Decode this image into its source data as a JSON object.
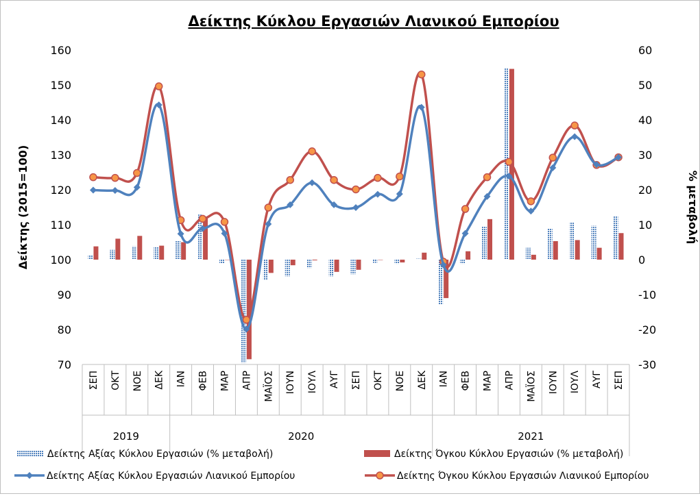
{
  "chart_data": {
    "type": "bar+line",
    "title": "Δείκτης Κύκλου Εργασιών Λιανικού Εμπορίου",
    "ylabel": "Δείκτης (2015=100)",
    "y2label": "% μεταβολή",
    "ylim": [
      70,
      160
    ],
    "y_ticks": [
      "160",
      "150",
      "140",
      "130",
      "120",
      "110",
      "100",
      "90",
      "80",
      "70"
    ],
    "y2lim": [
      -30,
      60
    ],
    "y2_ticks": [
      "60",
      "50",
      "40",
      "30",
      "20",
      "10",
      "0",
      "-10",
      "-20",
      "-30"
    ],
    "categories": [
      "ΣΕΠ",
      "ΟΚΤ",
      "ΝΟΕ",
      "ΔΕΚ",
      "ΙΑΝ",
      "ΦΕΒ",
      "ΜΑΡ",
      "ΑΠΡ",
      "ΜΑΪΟΣ",
      "ΙΟΥΝ",
      "ΙΟΥΛ",
      "ΑΥΓ",
      "ΣΕΠ",
      "ΟΚΤ",
      "ΝΟΕ",
      "ΔΕΚ",
      "ΙΑΝ",
      "ΦΕΒ",
      "ΜΑΡ",
      "ΑΠΡ",
      "ΜΑΪΟΣ",
      "ΙΟΥΝ",
      "ΙΟΥΛ",
      "ΑΥΓ",
      "ΣΕΠ"
    ],
    "years": [
      {
        "label": "2019",
        "start": 0,
        "end": 3
      },
      {
        "label": "2020",
        "start": 4,
        "end": 15
      },
      {
        "label": "2021",
        "start": 16,
        "end": 24
      }
    ],
    "bar_series": [
      {
        "name": "Δείκτης Αξίας Κύκλου Εργασιών (% μεταβολή)",
        "color": "#4f81bd",
        "pattern": "dotted",
        "values": [
          1.2,
          2.8,
          3.8,
          3.6,
          5.4,
          12.9,
          -1.1,
          -29.5,
          -5.9,
          -4.8,
          -2.4,
          -4.8,
          -4.2,
          -0.9,
          -1.2,
          0.3,
          -12.8,
          -1.2,
          9.6,
          54.8,
          3.4,
          8.9,
          10.6,
          9.7,
          12.5
        ]
      },
      {
        "name": "Δείκτης Όγκου Κύκλου Εργασιών (% μεταβολή)",
        "color": "#c0504d",
        "pattern": "solid",
        "values": [
          3.8,
          6.0,
          6.8,
          4.0,
          5.0,
          12.0,
          0,
          -28.5,
          -3.8,
          -1.6,
          -0.2,
          -3.5,
          -2.9,
          0,
          -0.8,
          2.0,
          -11.0,
          2.4,
          11.6,
          54.6,
          1.4,
          5.3,
          5.6,
          3.4,
          7.6
        ]
      }
    ],
    "line_series": [
      {
        "name": "Δείκτης Αξίας Κύκλου Εργασιών Λιανικού Εμπορίου",
        "color": "#4f81bd",
        "marker": "diamond",
        "values": [
          119.9,
          119.8,
          120.7,
          144.3,
          107.4,
          108.9,
          107.5,
          80.1,
          110.2,
          115.7,
          122.0,
          115.7,
          114.9,
          118.7,
          118.8,
          143.6,
          98.5,
          107.5,
          118.1,
          123.9,
          113.9,
          126.3,
          135.2,
          127.2,
          129.3
        ]
      },
      {
        "name": "Δείκτης Όγκου Κύκλου Εργασιών Λιανικού Εμπορίου",
        "color": "#c0504d",
        "marker": "circle",
        "values": [
          123.6,
          123.4,
          124.8,
          149.6,
          111.3,
          111.7,
          110.8,
          82.8,
          114.9,
          122.8,
          131.0,
          122.8,
          120.1,
          123.4,
          123.8,
          153.0,
          99.4,
          114.5,
          123.6,
          128.0,
          116.7,
          129.2,
          138.4,
          127.1,
          129.3
        ]
      }
    ],
    "legend_position": "bottom"
  }
}
